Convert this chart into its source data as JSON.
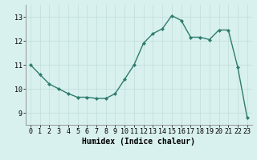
{
  "x": [
    0,
    1,
    2,
    3,
    4,
    5,
    6,
    7,
    8,
    9,
    10,
    11,
    12,
    13,
    14,
    15,
    16,
    17,
    18,
    19,
    20,
    21,
    22,
    23
  ],
  "y": [
    11.0,
    10.6,
    10.2,
    10.0,
    9.8,
    9.65,
    9.65,
    9.6,
    9.6,
    9.8,
    10.4,
    11.0,
    11.9,
    12.3,
    12.5,
    13.05,
    12.85,
    12.15,
    12.15,
    12.05,
    12.45,
    12.45,
    10.9,
    8.8
  ],
  "xlabel": "Humidex (Indice chaleur)",
  "ylim": [
    8.5,
    13.5
  ],
  "xlim": [
    -0.5,
    23.5
  ],
  "yticks": [
    9,
    10,
    11,
    12,
    13
  ],
  "xticks": [
    0,
    1,
    2,
    3,
    4,
    5,
    6,
    7,
    8,
    9,
    10,
    11,
    12,
    13,
    14,
    15,
    16,
    17,
    18,
    19,
    20,
    21,
    22,
    23
  ],
  "line_color": "#2e7d6e",
  "marker_color": "#2e7d6e",
  "bg_color": "#d8f0ee",
  "grid_color": "#c0ddd9",
  "axis_color": "#888888",
  "xlabel_fontsize": 7,
  "tick_fontsize": 6
}
